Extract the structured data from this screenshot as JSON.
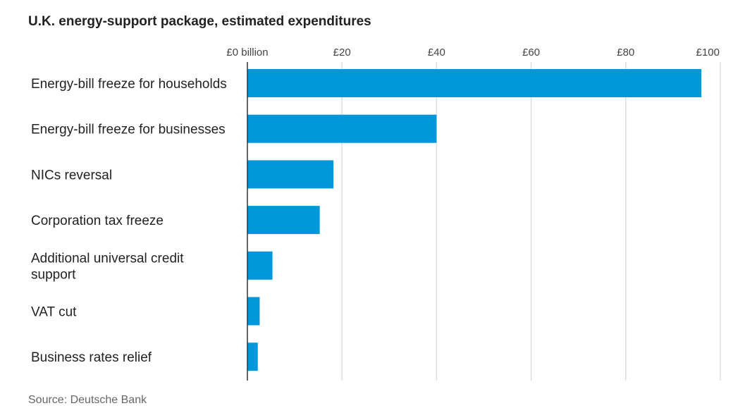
{
  "chart_data": {
    "type": "bar",
    "orientation": "horizontal",
    "title": "U.K. energy-support package, estimated expenditures",
    "categories": [
      "Energy-bill freeze for households",
      "Energy-bill freeze for businesses",
      "NICs reversal",
      "Corporation tax freeze",
      "Additional universal credit support",
      "VAT cut",
      "Business rates relief"
    ],
    "category_lines": [
      [
        "Energy-bill freeze for households"
      ],
      [
        "Energy-bill freeze for businesses"
      ],
      [
        "NICs reversal"
      ],
      [
        "Corporation tax freeze"
      ],
      [
        "Additional universal credit",
        "support"
      ],
      [
        "VAT cut"
      ],
      [
        "Business rates relief"
      ]
    ],
    "values": [
      96,
      40,
      18.2,
      15.3,
      5.3,
      2.6,
      2.2
    ],
    "xlim": [
      0,
      100
    ],
    "xticks": [
      0,
      20,
      40,
      60,
      80,
      100
    ],
    "xtick_labels": [
      "£0 billion",
      "£20",
      "£40",
      "£60",
      "£80",
      "£100"
    ],
    "grid": true,
    "bar_color": "#0098db",
    "source": "Source: Deutsche Bank"
  }
}
